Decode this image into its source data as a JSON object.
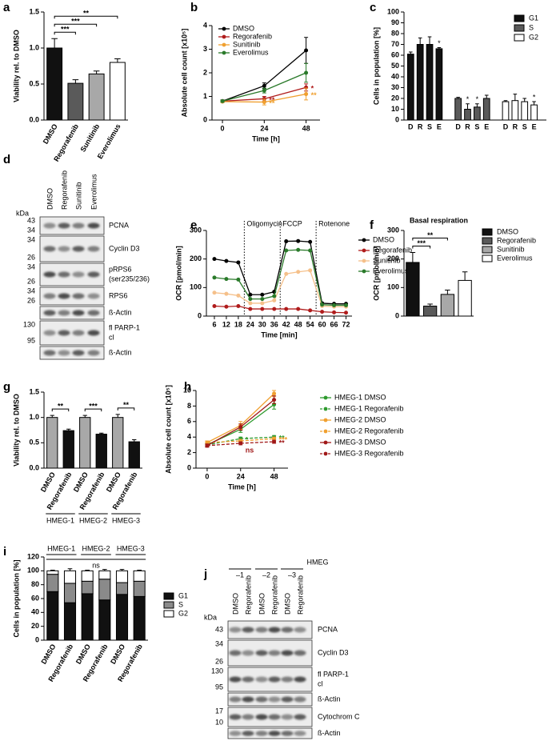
{
  "chart_data": [
    {
      "letter": "a",
      "type": "bar",
      "ylabel": "Viability rel. to DMSO",
      "categories": [
        "DMSO",
        "Regorafenib",
        "Sunitinib",
        "Everolimus"
      ],
      "values": [
        1.0,
        0.51,
        0.64,
        0.8
      ],
      "errors": [
        0.13,
        0.05,
        0.04,
        0.05
      ],
      "colors": [
        "#111111",
        "#5a5a5a",
        "#a8a8a8",
        "#ffffff"
      ],
      "ylim": [
        0,
        1.5
      ],
      "yticks": [
        {
          "value": 0,
          "label": "0.0"
        },
        0.5,
        {
          "value": 1,
          "label": "1.0"
        },
        1.5
      ],
      "brackets": [
        {
          "pair": [
            0,
            1
          ],
          "label": "***"
        },
        {
          "pair": [
            0,
            2
          ],
          "label": "***"
        },
        {
          "pair": [
            0,
            3
          ],
          "label": "**"
        }
      ]
    },
    {
      "letter": "b",
      "type": "line",
      "ylabel": "Absolute cell count [x10⁵]",
      "xlabel": "Time [h]",
      "x": [
        0,
        24,
        48
      ],
      "xlim": [
        -6,
        56
      ],
      "xticks": [
        0,
        24,
        48
      ],
      "ylim": [
        0,
        4
      ],
      "yticks": [
        0,
        1,
        2,
        3,
        4
      ],
      "legend": "upper left",
      "series": [
        {
          "name": "DMSO",
          "color": "#000000",
          "values": [
            0.8,
            1.45,
            2.95
          ],
          "errors": [
            0.05,
            0.12,
            0.55
          ]
        },
        {
          "name": "Regorafenib",
          "color": "#b01c1c",
          "values": [
            0.8,
            0.9,
            1.38
          ],
          "errors": [
            0.04,
            0.1,
            0.15
          ],
          "point_labels": [
            null,
            "**",
            "*"
          ]
        },
        {
          "name": "Sunitinib",
          "color": "#f0a030",
          "values": [
            0.78,
            0.76,
            1.1
          ],
          "errors": [
            0.04,
            0.12,
            0.25
          ],
          "point_labels": [
            null,
            "**",
            "**"
          ]
        },
        {
          "name": "Everolimus",
          "color": "#2a7a2a",
          "values": [
            0.8,
            1.25,
            2.0
          ],
          "errors": [
            0.04,
            0.1,
            0.4
          ]
        }
      ]
    },
    {
      "letter": "c",
      "type": "grouped_bar",
      "ylabel": "Cells in population [%]",
      "categories": [
        "D",
        "R",
        "S",
        "E"
      ],
      "ylim": [
        0,
        100
      ],
      "yticks": [
        0,
        10,
        20,
        30,
        40,
        50,
        60,
        70,
        80,
        90,
        100
      ],
      "legend": "upper right",
      "series": [
        {
          "name": "G1",
          "color": "#111111",
          "values": [
            61,
            70,
            70,
            66
          ],
          "errors": [
            2,
            6,
            7,
            1
          ],
          "point_labels": [
            null,
            null,
            null,
            "*"
          ]
        },
        {
          "name": "S",
          "color": "#5a5a5a",
          "values": [
            20,
            10,
            12,
            20
          ],
          "errors": [
            1,
            5,
            3,
            3
          ],
          "point_labels": [
            null,
            "*",
            "*",
            null
          ]
        },
        {
          "name": "G2",
          "color": "#ffffff",
          "values": [
            17,
            18,
            17,
            14
          ],
          "errors": [
            1,
            6,
            3,
            3
          ],
          "point_labels": [
            null,
            null,
            null,
            "*"
          ]
        }
      ]
    },
    {
      "letter": "e",
      "type": "line",
      "ylabel": "OCR [pmol/min]",
      "xlabel": "Time [min]",
      "x": [
        6,
        12,
        18,
        24,
        30,
        36,
        42,
        48,
        54,
        60,
        66,
        72
      ],
      "xlim": [
        2,
        75
      ],
      "xticks": [
        6,
        12,
        18,
        24,
        30,
        36,
        42,
        48,
        54,
        60,
        66,
        72
      ],
      "ylim": [
        0,
        300
      ],
      "yticks": [
        0,
        100,
        200,
        300
      ],
      "legend": "right",
      "injections": [
        {
          "x": 21,
          "label": "Oligomycin"
        },
        {
          "x": 39,
          "label": "FCCP"
        },
        {
          "x": 57,
          "label": "Rotenone"
        }
      ],
      "series": [
        {
          "name": "DMSO",
          "color": "#000000",
          "values": [
            200,
            193,
            188,
            75,
            75,
            85,
            262,
            263,
            260,
            45,
            43,
            43
          ]
        },
        {
          "name": "Regorafenib",
          "color": "#b01c1c",
          "values": [
            35,
            33,
            35,
            25,
            25,
            25,
            25,
            25,
            20,
            15,
            13,
            12
          ]
        },
        {
          "name": "Sunitinib",
          "color": "#f5c08a",
          "values": [
            82,
            78,
            72,
            45,
            45,
            55,
            148,
            155,
            160,
            35,
            33,
            33
          ]
        },
        {
          "name": "Everolimus",
          "color": "#2a7a2a",
          "values": [
            135,
            130,
            128,
            60,
            60,
            70,
            230,
            232,
            230,
            40,
            38,
            38
          ]
        }
      ]
    },
    {
      "letter": "f",
      "type": "bar",
      "title": "Basal respiration",
      "ylabel": "OCR [pmol/min]",
      "categories": [
        "DMSO",
        "Regorafenib",
        "Sunitinib",
        "Everolimus"
      ],
      "values": [
        188,
        35,
        76,
        125
      ],
      "errors": [
        35,
        7,
        15,
        30
      ],
      "colors": [
        "#111111",
        "#5a5a5a",
        "#a8a8a8",
        "#ffffff"
      ],
      "ylim": [
        0,
        300
      ],
      "yticks": [
        0,
        100,
        200,
        300
      ],
      "legend": "right",
      "brackets": [
        {
          "pair": [
            0,
            1
          ],
          "label": "***"
        },
        {
          "pair": [
            0,
            2
          ],
          "label": "**"
        }
      ]
    },
    {
      "letter": "g",
      "type": "bar",
      "ylabel": "Viability rel. to DMSO",
      "categories": [
        "DMSO",
        "Regorafenib",
        "DMSO",
        "Regorafenib",
        "DMSO",
        "Regorafenib"
      ],
      "values": [
        1.0,
        0.74,
        1.0,
        0.67,
        1.0,
        0.52
      ],
      "errors": [
        0.04,
        0.03,
        0.04,
        0.02,
        0.06,
        0.04
      ],
      "colors": [
        "#a8a8a8",
        "#111111",
        "#a8a8a8",
        "#111111",
        "#a8a8a8",
        "#111111"
      ],
      "ylim": [
        0,
        1.5
      ],
      "yticks": [
        {
          "value": 0,
          "label": "0.0"
        },
        0.5,
        {
          "value": 1,
          "label": "1.0"
        },
        1.5
      ],
      "brackets": [
        {
          "pair": [
            0,
            1
          ],
          "label": "**"
        },
        {
          "pair": [
            2,
            3
          ],
          "label": "***"
        },
        {
          "pair": [
            4,
            5
          ],
          "label": "**"
        }
      ],
      "groups": [
        {
          "label": "HMEG-1",
          "span": [
            0,
            1
          ]
        },
        {
          "label": "HMEG-2",
          "span": [
            2,
            3
          ]
        },
        {
          "label": "HMEG-3",
          "span": [
            4,
            5
          ]
        }
      ]
    },
    {
      "letter": "h",
      "type": "line",
      "ylabel": "Absolute cell count [x10⁵]",
      "xlabel": "Time [h]",
      "x": [
        0,
        24,
        48
      ],
      "xlim": [
        -8,
        58
      ],
      "xticks": [
        0,
        24,
        48
      ],
      "ylim": [
        0,
        10
      ],
      "yticks": [
        0,
        2,
        4,
        6,
        8,
        10
      ],
      "legend": "right",
      "series": [
        {
          "name": "HMEG-1 DMSO",
          "color": "#2e9a2e",
          "values": [
            3.0,
            5.0,
            8.2
          ],
          "errors": [
            0.2,
            0.4,
            0.6
          ]
        },
        {
          "name": "HMEG-1 Regorafenib",
          "color": "#2e9a2e",
          "dashed": true,
          "values": [
            3.0,
            3.8,
            4.0
          ],
          "errors": [
            0.2,
            0.2,
            0.2
          ],
          "point_labels": [
            null,
            "*",
            "**"
          ]
        },
        {
          "name": "HMEG-2 DMSO",
          "color": "#f0a030",
          "values": [
            3.3,
            5.5,
            9.6
          ],
          "errors": [
            0.2,
            0.5,
            0.4
          ]
        },
        {
          "name": "HMEG-2 Regorafenib",
          "color": "#f0a030",
          "dashed": true,
          "values": [
            3.3,
            3.5,
            3.8
          ],
          "errors": [
            0.2,
            0.2,
            0.2
          ],
          "point_labels": [
            null,
            null,
            "***"
          ]
        },
        {
          "name": "HMEG-3 DMSO",
          "color": "#a01818",
          "values": [
            2.9,
            5.3,
            8.8
          ],
          "errors": [
            0.2,
            0.4,
            0.5
          ]
        },
        {
          "name": "HMEG-3 Regorafenib",
          "color": "#a01818",
          "dashed": true,
          "values": [
            2.9,
            3.2,
            3.4
          ],
          "errors": [
            0.2,
            0.2,
            0.2
          ],
          "point_labels": [
            null,
            "ns",
            "**"
          ]
        }
      ]
    },
    {
      "letter": "i",
      "type": "stacked_bar",
      "ylabel": "Cells in population [%]",
      "categories": [
        "DMSO",
        "Regorafenib",
        "DMSO",
        "Regorafenib",
        "DMSO",
        "Regorafenib"
      ],
      "ylim": [
        0,
        120
      ],
      "yticks": [
        0,
        20,
        40,
        60,
        80,
        100,
        120
      ],
      "legend": "right",
      "groups": [
        {
          "label": "HMEG-1",
          "span": [
            0,
            1
          ]
        },
        {
          "label": "HMEG-2",
          "span": [
            2,
            3
          ]
        },
        {
          "label": "HMEG-3",
          "span": [
            4,
            5
          ]
        }
      ],
      "brackets": [
        {
          "pair": [
            0,
            5
          ],
          "label": "ns"
        }
      ],
      "series": [
        {
          "name": "G1",
          "color": "#111111",
          "values": [
            70,
            54,
            67,
            58,
            66,
            63
          ],
          "errors": [
            5,
            3,
            2,
            3,
            3,
            2
          ]
        },
        {
          "name": "S",
          "color": "#8a8a8a",
          "values": [
            25,
            28,
            18,
            30,
            17,
            22
          ],
          "errors": [
            3,
            5,
            2,
            3,
            3,
            3
          ]
        },
        {
          "name": "G2",
          "color": "#ffffff",
          "values": [
            5,
            18,
            15,
            12,
            17,
            15
          ],
          "errors": [
            1,
            3,
            1,
            2,
            2,
            1
          ]
        }
      ]
    }
  ],
  "blots": [
    {
      "letter": "d",
      "kda": "kDa",
      "lanes": [
        "DMSO",
        "Regorafenib",
        "Sunitinib",
        "Everolimus"
      ],
      "rows": [
        {
          "name": "PCNA",
          "markers": [
            43,
            34
          ]
        },
        {
          "name": "Cyclin D3",
          "markers": [
            34,
            26
          ]
        },
        {
          "name": "pRPS6",
          "sub": "(ser235/236)",
          "markers": [
            34,
            26
          ]
        },
        {
          "name": "RPS6",
          "markers": [
            34,
            26
          ]
        },
        {
          "name": "ß-Actin",
          "markers": []
        },
        {
          "name": "fl PARP-1",
          "sub": "cl",
          "markers": [
            130,
            95
          ]
        },
        {
          "name": "ß-Actin",
          "markers": []
        }
      ]
    },
    {
      "letter": "j",
      "header": "HMEG",
      "kda": "kDa",
      "groups": [
        {
          "label": "–1",
          "span": [
            0,
            1
          ]
        },
        {
          "label": "–2",
          "span": [
            2,
            3
          ]
        },
        {
          "label": "–3",
          "span": [
            4,
            5
          ]
        }
      ],
      "lanes": [
        "DMSO",
        "Regorafenib",
        "DMSO",
        "Regorafenib",
        "DMSO",
        "Regorafenib"
      ],
      "rows": [
        {
          "name": "PCNA",
          "markers": [
            43
          ]
        },
        {
          "name": "Cyclin D3",
          "markers": [
            34,
            26
          ]
        },
        {
          "name": "fl PARP-1",
          "sub": "cl",
          "markers": [
            130,
            95
          ]
        },
        {
          "name": "ß-Actin",
          "markers": []
        },
        {
          "name": "Cytochrom C",
          "markers": [
            17,
            10
          ]
        },
        {
          "name": "ß-Actin",
          "markers": []
        }
      ]
    }
  ]
}
